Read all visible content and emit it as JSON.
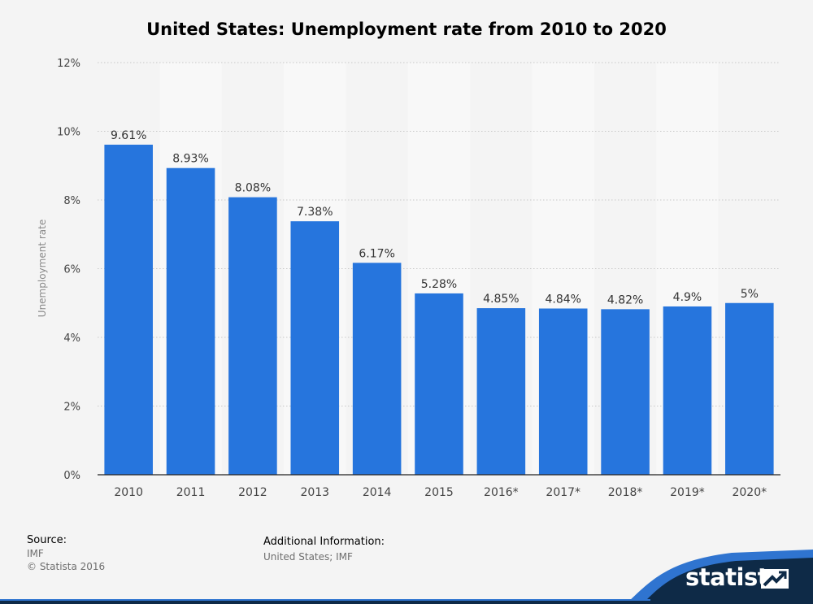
{
  "chart_data": {
    "type": "bar",
    "title": "United States: Unemployment rate from 2010 to 2020",
    "xlabel": "",
    "ylabel": "Unemployment rate",
    "categories": [
      "2010",
      "2011",
      "2012",
      "2013",
      "2014",
      "2015",
      "2016*",
      "2017*",
      "2018*",
      "2019*",
      "2020*"
    ],
    "values": [
      9.61,
      8.93,
      8.08,
      7.38,
      6.17,
      5.28,
      4.85,
      4.84,
      4.82,
      4.9,
      5
    ],
    "value_labels": [
      "9.61%",
      "8.93%",
      "8.08%",
      "7.38%",
      "6.17%",
      "5.28%",
      "4.85%",
      "4.84%",
      "4.82%",
      "4.9%",
      "5%"
    ],
    "ylim": [
      0,
      12
    ],
    "yticks": [
      0,
      2,
      4,
      6,
      8,
      10,
      12
    ],
    "ytick_labels": [
      "0%",
      "2%",
      "4%",
      "6%",
      "8%",
      "10%",
      "12%"
    ],
    "grid": true,
    "legend": "none"
  },
  "colors": {
    "bar": "#2675dd",
    "band": "#f8f8f8",
    "background": "#f4f4f4",
    "grid": "#c8c8c8",
    "footer_dark": "#0e2a47",
    "footer_accent": "#2f74d0"
  },
  "source": {
    "heading": "Source:",
    "value": "IMF",
    "copyright": "© Statista 2016"
  },
  "additional": {
    "heading": "Additional Information:",
    "value": "United States; IMF"
  },
  "brand": {
    "name": "statista",
    "icon": "statista-logo-icon"
  }
}
